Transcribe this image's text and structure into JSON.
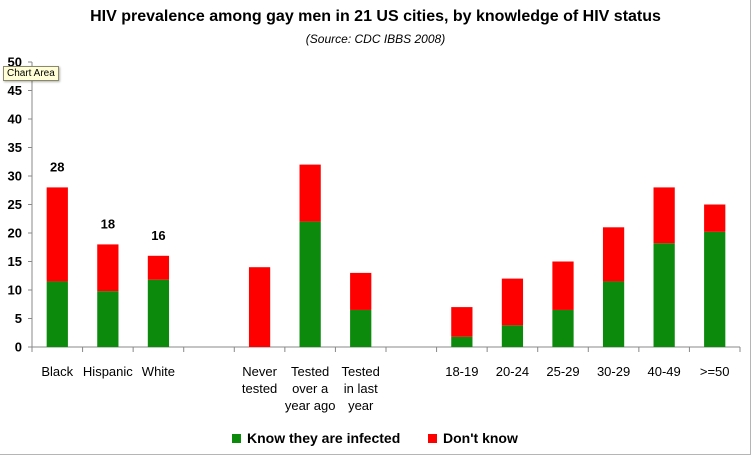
{
  "chart_data": {
    "type": "bar",
    "stacked": true,
    "title": "HIV prevalence among gay men in 21 US cities, by knowledge of HIV status",
    "subtitle": "(Source: CDC IBBS 2008)",
    "ylim": [
      0,
      50
    ],
    "yticks": [
      0,
      5,
      10,
      15,
      20,
      25,
      30,
      35,
      40,
      45,
      50
    ],
    "groups": [
      {
        "categories": [
          [
            "Black"
          ],
          [
            "Hispanic"
          ],
          [
            "White"
          ]
        ]
      },
      {
        "categories": [
          [
            "Never",
            "tested"
          ],
          [
            "Tested",
            "over a",
            "year ago"
          ],
          [
            "Tested",
            "in last",
            "year"
          ]
        ]
      },
      {
        "categories": [
          [
            "18-19"
          ],
          [
            "20-24"
          ],
          [
            "25-29"
          ],
          [
            "30-29"
          ],
          [
            "40-49"
          ],
          [
            ">=50"
          ]
        ]
      }
    ],
    "series": [
      {
        "name": "Know they are infected",
        "color": "#0c8a0c",
        "values": [
          11.5,
          9.8,
          11.8,
          0,
          22,
          6.5,
          1.8,
          3.8,
          6.5,
          11.5,
          18.2,
          20.2
        ]
      },
      {
        "name": "Don't know",
        "color": "#ff0000",
        "values": [
          16.5,
          8.2,
          4.2,
          14,
          10,
          6.5,
          5.2,
          8.2,
          8.5,
          9.5,
          9.8,
          4.8
        ]
      }
    ],
    "data_labels": [
      "28",
      "18",
      "16",
      "",
      "",
      "",
      "",
      "",
      "",
      "",
      "",
      ""
    ],
    "legend_position": "bottom"
  },
  "ui": {
    "tooltip": "Chart Area"
  }
}
